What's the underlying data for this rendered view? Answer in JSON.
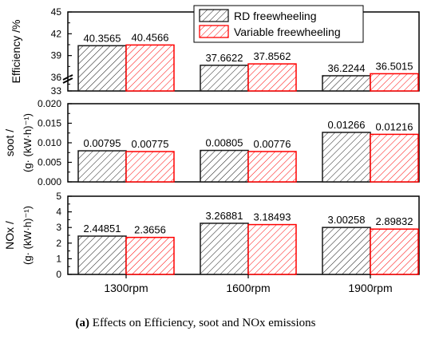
{
  "caption": {
    "label": "(a)",
    "text": " Effects on Efficiency, soot and NOx emissions"
  },
  "colors": {
    "rd": "#1a1a1a",
    "variable": "#ff0000",
    "frame": "#000000"
  },
  "chart_data": [
    {
      "type": "bar",
      "panel": "efficiency",
      "ylabel": "Efficiency /%",
      "ylabel_extra": "",
      "yticks": [
        "45",
        "42",
        "39",
        "36",
        "33"
      ],
      "ylim": [
        33,
        45
      ],
      "axis_break": true,
      "categories": [
        "1300rpm",
        "1600rpm",
        "1900rpm"
      ],
      "legend": {
        "position": "top-right",
        "entries": [
          "RD freewheeling",
          "Variable freewheeling"
        ]
      },
      "series": [
        {
          "name": "RD freewheeling",
          "values": [
            40.3565,
            37.6622,
            36.2244
          ],
          "labels": [
            "40.3565",
            "37.6622",
            "36.2244"
          ]
        },
        {
          "name": "Variable freewheeling",
          "values": [
            40.4566,
            37.8562,
            36.5015
          ],
          "labels": [
            "40.4566",
            "37.8562",
            "36.5015"
          ]
        }
      ]
    },
    {
      "type": "bar",
      "panel": "soot",
      "ylabel": "soot /",
      "ylabel_extra": "(g· (kW·h)⁻¹)",
      "yticks": [
        "0.020",
        "0.015",
        "0.010",
        "0.005",
        "0.000"
      ],
      "ylim": [
        0,
        0.02
      ],
      "categories": [
        "1300rpm",
        "1600rpm",
        "1900rpm"
      ],
      "series": [
        {
          "name": "RD freewheeling",
          "values": [
            0.00795,
            0.00805,
            0.01266
          ],
          "labels": [
            "0.00795",
            "0.00805",
            "0.01266"
          ]
        },
        {
          "name": "Variable freewheeling",
          "values": [
            0.00775,
            0.00776,
            0.01216
          ],
          "labels": [
            "0.00775",
            "0.00776",
            "0.01216"
          ]
        }
      ]
    },
    {
      "type": "bar",
      "panel": "nox",
      "ylabel": "NOx /",
      "ylabel_extra": "(g· (kW·h)⁻¹)",
      "yticks": [
        "5",
        "4",
        "3",
        "2",
        "1",
        "0"
      ],
      "ylim": [
        0,
        5
      ],
      "categories": [
        "1300rpm",
        "1600rpm",
        "1900rpm"
      ],
      "series": [
        {
          "name": "RD freewheeling",
          "values": [
            2.44851,
            3.26881,
            3.00258
          ],
          "labels": [
            "2.44851",
            "3.26881",
            "3.00258"
          ]
        },
        {
          "name": "Variable freewheeling",
          "values": [
            2.3656,
            3.18493,
            2.89832
          ],
          "labels": [
            "2.3656",
            "3.18493",
            "2.89832"
          ]
        }
      ]
    }
  ]
}
